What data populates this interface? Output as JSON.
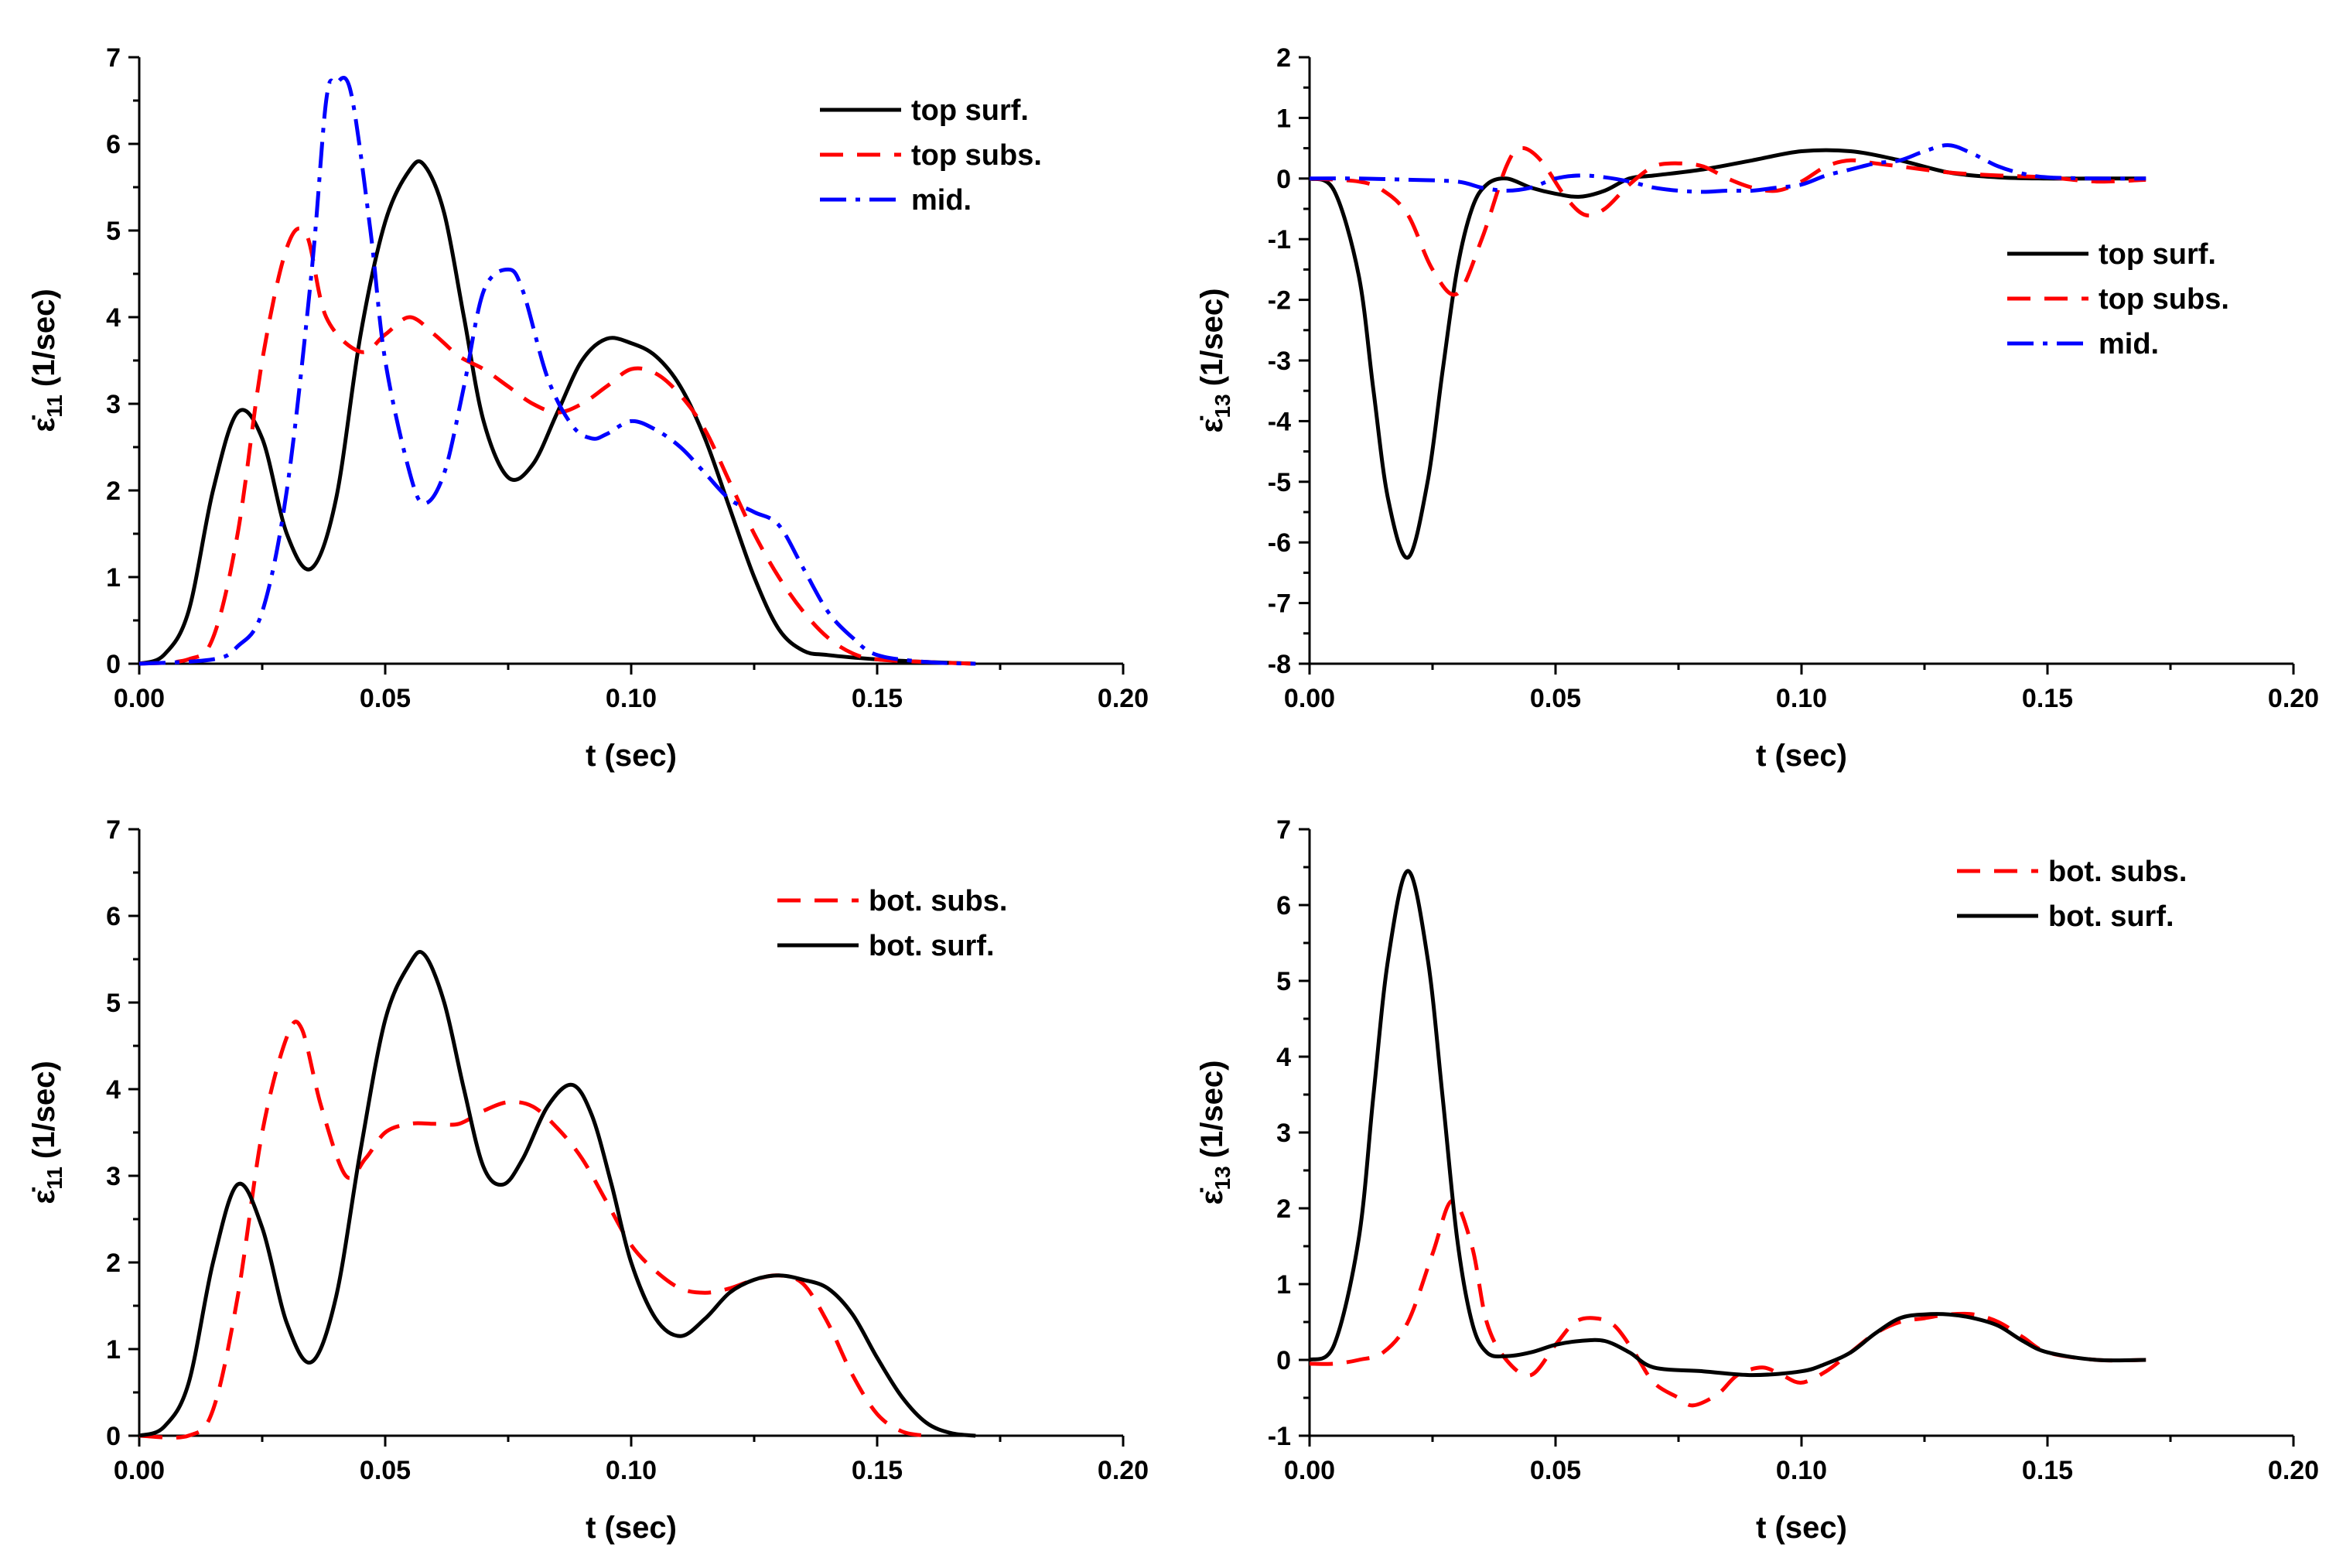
{
  "series_styles": {
    "top surf.": {
      "color": "#000000",
      "dash": ""
    },
    "top subs.": {
      "color": "#ff0000",
      "dash": "30,18"
    },
    "mid.": {
      "color": "#0000ff",
      "dash": "34,12,6,12"
    },
    "bot. subs.": {
      "color": "#ff0000",
      "dash": "30,18"
    },
    "bot. surf.": {
      "color": "#000000",
      "dash": ""
    }
  },
  "chart_data": [
    {
      "type": "line",
      "title": "",
      "xlabel": "t (sec)",
      "ylabel_symbol": "ε̇",
      "ylabel_sub": "11",
      "ylabel_unit": "(1/sec)",
      "xlim": [
        0,
        0.2
      ],
      "ylim": [
        0,
        7
      ],
      "xticks": [
        "0.00",
        "0.05",
        "0.10",
        "0.15",
        "0.20"
      ],
      "yticks": [
        "0",
        "1",
        "2",
        "3",
        "4",
        "5",
        "6",
        "7"
      ],
      "legend_position": "top-right",
      "series": [
        {
          "name": "top surf.",
          "x": [
            0,
            0.005,
            0.01,
            0.015,
            0.02,
            0.025,
            0.03,
            0.035,
            0.04,
            0.045,
            0.05,
            0.055,
            0.058,
            0.062,
            0.066,
            0.07,
            0.075,
            0.08,
            0.085,
            0.09,
            0.095,
            0.1,
            0.105,
            0.11,
            0.115,
            0.12,
            0.125,
            0.13,
            0.135,
            0.14,
            0.15,
            0.16,
            0.17
          ],
          "y": [
            0,
            0.1,
            0.6,
            2.0,
            2.9,
            2.6,
            1.5,
            1.1,
            1.9,
            3.8,
            5.1,
            5.7,
            5.75,
            5.2,
            4.0,
            2.8,
            2.15,
            2.3,
            2.9,
            3.5,
            3.75,
            3.7,
            3.55,
            3.2,
            2.6,
            1.8,
            1.0,
            0.4,
            0.15,
            0.1,
            0.05,
            0.02,
            0
          ]
        },
        {
          "name": "top subs.",
          "x": [
            0,
            0.01,
            0.015,
            0.02,
            0.025,
            0.03,
            0.034,
            0.038,
            0.045,
            0.05,
            0.055,
            0.06,
            0.065,
            0.07,
            0.075,
            0.08,
            0.085,
            0.09,
            0.095,
            0.1,
            0.105,
            0.11,
            0.115,
            0.12,
            0.125,
            0.13,
            0.135,
            0.14,
            0.145,
            0.15,
            0.16,
            0.17
          ],
          "y": [
            0,
            0.05,
            0.3,
            1.5,
            3.5,
            4.8,
            4.95,
            4.0,
            3.6,
            3.8,
            4.0,
            3.8,
            3.55,
            3.4,
            3.2,
            3.0,
            2.9,
            3.0,
            3.2,
            3.4,
            3.35,
            3.1,
            2.7,
            2.1,
            1.5,
            1.0,
            0.6,
            0.3,
            0.12,
            0.05,
            0.02,
            0
          ]
        },
        {
          "name": "mid.",
          "x": [
            0,
            0.015,
            0.02,
            0.025,
            0.03,
            0.035,
            0.038,
            0.04,
            0.043,
            0.047,
            0.05,
            0.055,
            0.058,
            0.062,
            0.066,
            0.07,
            0.075,
            0.078,
            0.083,
            0.088,
            0.092,
            0.095,
            0.1,
            0.105,
            0.11,
            0.115,
            0.12,
            0.125,
            0.13,
            0.135,
            0.14,
            0.145,
            0.15,
            0.16,
            0.17
          ],
          "y": [
            0,
            0.05,
            0.2,
            0.6,
            2.0,
            4.5,
            6.5,
            6.7,
            6.6,
            5.0,
            3.5,
            2.2,
            1.85,
            2.2,
            3.2,
            4.3,
            4.55,
            4.3,
            3.3,
            2.75,
            2.6,
            2.65,
            2.8,
            2.7,
            2.5,
            2.2,
            1.9,
            1.75,
            1.6,
            1.1,
            0.6,
            0.3,
            0.1,
            0.02,
            0
          ]
        }
      ]
    },
    {
      "type": "line",
      "title": "",
      "xlabel": "t (sec)",
      "ylabel_symbol": "ε̇",
      "ylabel_sub": "13",
      "ylabel_unit": "(1/sec)",
      "xlim": [
        0,
        0.2
      ],
      "ylim": [
        -8,
        2
      ],
      "xticks": [
        "0.00",
        "0.05",
        "0.10",
        "0.15",
        "0.20"
      ],
      "yticks": [
        "-8",
        "-7",
        "-6",
        "-5",
        "-4",
        "-3",
        "-2",
        "-1",
        "0",
        "1",
        "2"
      ],
      "legend_position": "center-right",
      "series": [
        {
          "name": "top surf.",
          "x": [
            0,
            0.005,
            0.01,
            0.013,
            0.016,
            0.02,
            0.024,
            0.027,
            0.03,
            0.033,
            0.036,
            0.04,
            0.045,
            0.05,
            0.055,
            0.06,
            0.065,
            0.07,
            0.08,
            0.09,
            0.1,
            0.11,
            0.12,
            0.13,
            0.14,
            0.15,
            0.16,
            0.17
          ],
          "y": [
            0,
            -0.2,
            -1.6,
            -3.5,
            -5.3,
            -6.25,
            -5.0,
            -3.2,
            -1.5,
            -0.5,
            -0.1,
            0,
            -0.15,
            -0.25,
            -0.3,
            -0.2,
            0,
            0.05,
            0.15,
            0.3,
            0.45,
            0.45,
            0.3,
            0.1,
            0.02,
            0,
            0,
            0
          ]
        },
        {
          "name": "top subs.",
          "x": [
            0,
            0.01,
            0.015,
            0.02,
            0.025,
            0.03,
            0.035,
            0.04,
            0.043,
            0.047,
            0.052,
            0.056,
            0.06,
            0.065,
            0.07,
            0.075,
            0.08,
            0.085,
            0.09,
            0.095,
            0.1,
            0.105,
            0.11,
            0.115,
            0.12,
            0.13,
            0.14,
            0.15,
            0.16,
            0.17
          ],
          "y": [
            0,
            -0.05,
            -0.2,
            -0.6,
            -1.5,
            -1.9,
            -1.0,
            0.2,
            0.5,
            0.3,
            -0.3,
            -0.6,
            -0.5,
            -0.1,
            0.2,
            0.25,
            0.2,
            0.0,
            -0.15,
            -0.2,
            -0.05,
            0.2,
            0.3,
            0.25,
            0.2,
            0.1,
            0.05,
            0.02,
            -0.05,
            -0.02
          ]
        },
        {
          "name": "mid.",
          "x": [
            0,
            0.01,
            0.02,
            0.03,
            0.035,
            0.04,
            0.045,
            0.05,
            0.055,
            0.06,
            0.065,
            0.07,
            0.075,
            0.08,
            0.085,
            0.09,
            0.095,
            0.1,
            0.105,
            0.11,
            0.115,
            0.12,
            0.125,
            0.13,
            0.135,
            0.14,
            0.145,
            0.15,
            0.16,
            0.17
          ],
          "y": [
            0,
            0,
            -0.02,
            -0.05,
            -0.15,
            -0.2,
            -0.15,
            0,
            0.05,
            0.02,
            -0.05,
            -0.15,
            -0.2,
            -0.22,
            -0.2,
            -0.2,
            -0.15,
            -0.1,
            0.05,
            0.15,
            0.25,
            0.3,
            0.45,
            0.55,
            0.4,
            0.2,
            0.08,
            0.02,
            0,
            0
          ]
        }
      ]
    },
    {
      "type": "line",
      "title": "",
      "xlabel": "t (sec)",
      "ylabel_symbol": "ε̇",
      "ylabel_sub": "11",
      "ylabel_unit": "(1/sec)",
      "xlim": [
        0,
        0.2
      ],
      "ylim": [
        0,
        7
      ],
      "xticks": [
        "0.00",
        "0.05",
        "0.10",
        "0.15",
        "0.20"
      ],
      "yticks": [
        "0",
        "1",
        "2",
        "3",
        "4",
        "5",
        "6",
        "7"
      ],
      "legend_position": "top-right",
      "series": [
        {
          "name": "bot. subs.",
          "x": [
            0,
            0.01,
            0.015,
            0.02,
            0.025,
            0.03,
            0.033,
            0.037,
            0.042,
            0.046,
            0.05,
            0.055,
            0.06,
            0.065,
            0.07,
            0.075,
            0.08,
            0.085,
            0.09,
            0.095,
            0.1,
            0.105,
            0.11,
            0.115,
            0.12,
            0.125,
            0.13,
            0.135,
            0.14,
            0.145,
            0.15,
            0.155,
            0.16
          ],
          "y": [
            0,
            0,
            0.3,
            1.6,
            3.5,
            4.6,
            4.7,
            3.8,
            3.0,
            3.2,
            3.5,
            3.6,
            3.6,
            3.6,
            3.75,
            3.85,
            3.8,
            3.55,
            3.2,
            2.7,
            2.2,
            1.9,
            1.7,
            1.65,
            1.7,
            1.8,
            1.85,
            1.75,
            1.3,
            0.7,
            0.25,
            0.05,
            0
          ]
        },
        {
          "name": "bot. surf.",
          "x": [
            0,
            0.005,
            0.01,
            0.015,
            0.02,
            0.025,
            0.03,
            0.035,
            0.04,
            0.045,
            0.05,
            0.055,
            0.058,
            0.062,
            0.066,
            0.07,
            0.074,
            0.078,
            0.083,
            0.088,
            0.092,
            0.096,
            0.1,
            0.105,
            0.11,
            0.115,
            0.12,
            0.125,
            0.13,
            0.135,
            0.14,
            0.145,
            0.15,
            0.155,
            0.16,
            0.165,
            0.17
          ],
          "y": [
            0,
            0.1,
            0.6,
            2.0,
            2.9,
            2.4,
            1.3,
            0.85,
            1.6,
            3.3,
            4.8,
            5.45,
            5.55,
            5.0,
            4.0,
            3.1,
            2.9,
            3.2,
            3.8,
            4.05,
            3.7,
            2.9,
            2.0,
            1.35,
            1.15,
            1.35,
            1.65,
            1.8,
            1.85,
            1.8,
            1.7,
            1.4,
            0.9,
            0.45,
            0.15,
            0.03,
            0
          ]
        }
      ]
    },
    {
      "type": "line",
      "title": "",
      "xlabel": "t (sec)",
      "ylabel_symbol": "ε̇",
      "ylabel_sub": "13",
      "ylabel_unit": "(1/sec)",
      "xlim": [
        0,
        0.2
      ],
      "ylim": [
        -1,
        7
      ],
      "xticks": [
        "0.00",
        "0.05",
        "0.10",
        "0.15",
        "0.20"
      ],
      "yticks": [
        "-1",
        "0",
        "1",
        "2",
        "3",
        "4",
        "5",
        "6",
        "7"
      ],
      "legend_position": "top-right",
      "series": [
        {
          "name": "bot. subs.",
          "x": [
            0,
            0.005,
            0.01,
            0.015,
            0.02,
            0.025,
            0.029,
            0.033,
            0.036,
            0.04,
            0.045,
            0.05,
            0.054,
            0.058,
            0.062,
            0.066,
            0.07,
            0.075,
            0.078,
            0.083,
            0.087,
            0.092,
            0.096,
            0.1,
            0.105,
            0.11,
            0.115,
            0.12,
            0.125,
            0.13,
            0.135,
            0.14,
            0.145,
            0.15,
            0.16,
            0.17
          ],
          "y": [
            -0.05,
            -0.05,
            0,
            0.1,
            0.5,
            1.4,
            2.1,
            1.5,
            0.5,
            0.0,
            -0.2,
            0.2,
            0.5,
            0.55,
            0.45,
            0.1,
            -0.3,
            -0.5,
            -0.6,
            -0.45,
            -0.2,
            -0.1,
            -0.2,
            -0.3,
            -0.15,
            0.1,
            0.35,
            0.5,
            0.55,
            0.6,
            0.6,
            0.5,
            0.3,
            0.1,
            0,
            0
          ]
        },
        {
          "name": "bot. surf.",
          "x": [
            0,
            0.005,
            0.01,
            0.013,
            0.016,
            0.02,
            0.024,
            0.027,
            0.03,
            0.033,
            0.036,
            0.04,
            0.045,
            0.05,
            0.055,
            0.06,
            0.065,
            0.07,
            0.08,
            0.09,
            0.1,
            0.105,
            0.11,
            0.115,
            0.12,
            0.125,
            0.13,
            0.135,
            0.14,
            0.145,
            0.15,
            0.16,
            0.17
          ],
          "y": [
            0,
            0.2,
            1.6,
            3.5,
            5.3,
            6.45,
            5.3,
            3.5,
            1.6,
            0.5,
            0.1,
            0.05,
            0.1,
            0.2,
            0.25,
            0.25,
            0.1,
            -0.1,
            -0.15,
            -0.2,
            -0.15,
            -0.05,
            0.1,
            0.35,
            0.55,
            0.6,
            0.6,
            0.55,
            0.45,
            0.25,
            0.1,
            0,
            0
          ]
        }
      ]
    }
  ]
}
